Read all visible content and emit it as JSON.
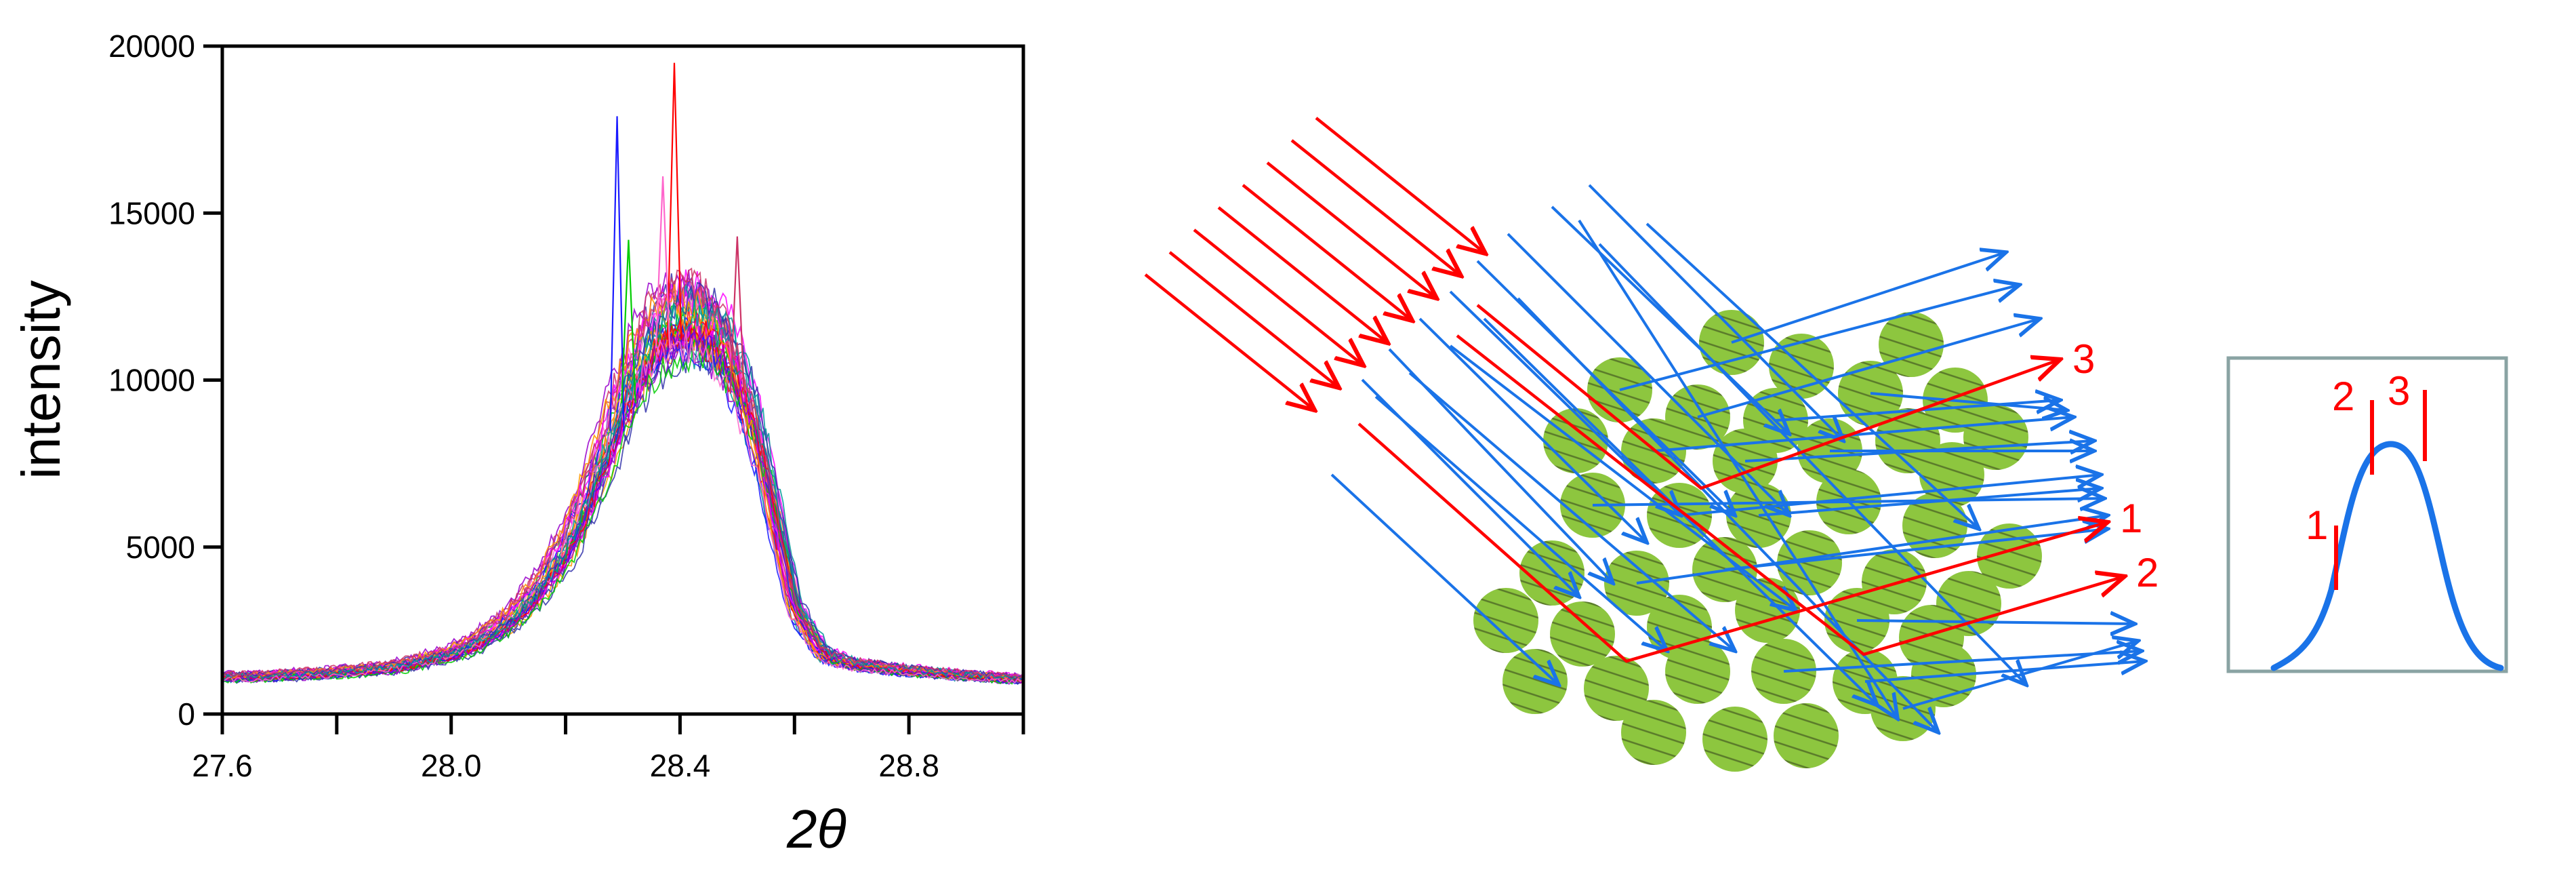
{
  "chart_data": {
    "type": "line",
    "xlabel": "2θ",
    "ylabel": "intensity",
    "xlim": [
      27.6,
      29.0
    ],
    "ylim": [
      0,
      20000
    ],
    "xticks": [
      27.6,
      27.8,
      28.0,
      28.2,
      28.4,
      28.6,
      28.8,
      29.0
    ],
    "xtick_labels": [
      "27.6",
      "28.0",
      "28.4",
      "28.8"
    ],
    "xtick_label_values": [
      27.6,
      28.0,
      28.4,
      28.8
    ],
    "yticks": [
      0,
      5000,
      10000,
      15000,
      20000
    ],
    "ytick_labels": [
      "0",
      "5000",
      "10000",
      "15000",
      "20000"
    ],
    "grid": false,
    "legend": "none",
    "series_count": 40,
    "series_colors": [
      "#1a1aff",
      "#ff00ff",
      "#00cc00",
      "#ff0000",
      "#ff9900",
      "#9900cc",
      "#ff66cc",
      "#3333aa",
      "#009999",
      "#cc3366"
    ],
    "x": [
      27.6,
      27.7,
      27.8,
      27.9,
      28.0,
      28.05,
      28.1,
      28.15,
      28.2,
      28.25,
      28.3,
      28.33,
      28.36,
      28.39,
      28.42,
      28.45,
      28.48,
      28.51,
      28.54,
      28.57,
      28.6,
      28.65,
      28.7,
      28.8,
      28.9,
      29.0
    ],
    "envelope": [
      1100,
      1150,
      1250,
      1400,
      1800,
      2200,
      2800,
      3700,
      5000,
      7000,
      9400,
      10600,
      11400,
      11800,
      11900,
      11600,
      10900,
      9700,
      8000,
      5600,
      3200,
      1800,
      1500,
      1300,
      1150,
      1050
    ],
    "peaks": [
      {
        "x": 28.29,
        "y": 17900
      },
      {
        "x": 28.39,
        "y": 19500
      },
      {
        "x": 28.37,
        "y": 16100
      },
      {
        "x": 28.5,
        "y": 14300
      },
      {
        "x": 28.31,
        "y": 14200
      }
    ]
  },
  "diagram": {
    "beam_labels": [
      "1",
      "2",
      "3"
    ],
    "colors": {
      "incident": "#ff0000",
      "scattered": "#1a73e8",
      "crystallite_fill": "#8dc63f",
      "crystallite_lines": "#5a7a2a",
      "inset_border": "#8aa3a3"
    },
    "inset": {
      "markers": [
        "1",
        "2",
        "3"
      ],
      "curve_color": "#1a73e8"
    }
  }
}
